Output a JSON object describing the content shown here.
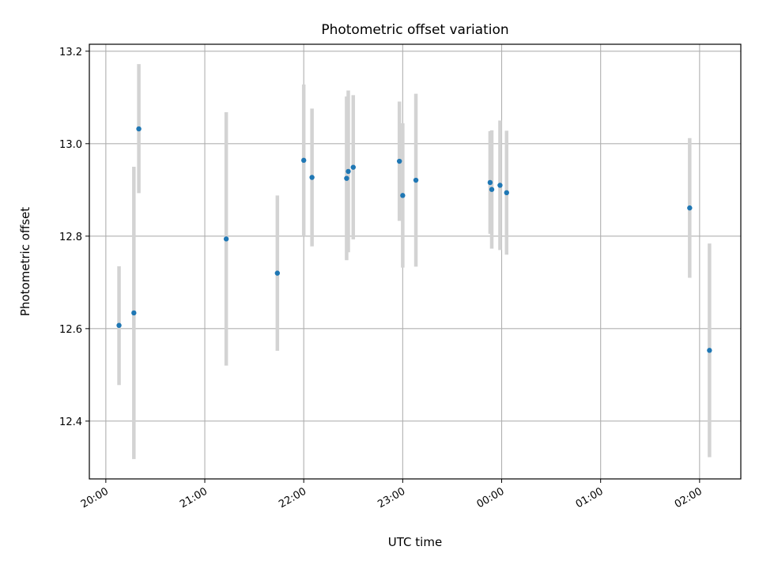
{
  "chart_data": {
    "type": "scatter",
    "title": "Photometric offset variation",
    "xlabel": "UTC time",
    "ylabel": "Photometric offset",
    "grid": true,
    "x_axis": {
      "unit": "time",
      "reference_time": "20:00",
      "range": [
        "19:50",
        "02:25"
      ],
      "ticks": [
        "20:00",
        "21:00",
        "22:00",
        "23:00",
        "00:00",
        "01:00",
        "02:00"
      ]
    },
    "y_axis": {
      "range": [
        12.275,
        13.215
      ],
      "ticks": [
        "12.4",
        "12.6",
        "12.8",
        "13.0",
        "13.2"
      ]
    },
    "colors": {
      "point": "#1f77b4",
      "errorbar": "#d3d3d3",
      "grid": "#b0b0b0",
      "axes": "#000000"
    },
    "series": [
      {
        "points": [
          {
            "x": "20:08",
            "y": 12.607,
            "err_low": 12.478,
            "err_high": 12.735
          },
          {
            "x": "20:17",
            "y": 12.634,
            "err_low": 12.318,
            "err_high": 12.95
          },
          {
            "x": "20:20",
            "y": 13.032,
            "err_low": 12.893,
            "err_high": 13.172
          },
          {
            "x": "21:13",
            "y": 12.794,
            "err_low": 12.52,
            "err_high": 13.068
          },
          {
            "x": "21:44",
            "y": 12.72,
            "err_low": 12.552,
            "err_high": 12.888
          },
          {
            "x": "22:00",
            "y": 12.964,
            "err_low": 12.8,
            "err_high": 13.128
          },
          {
            "x": "22:05",
            "y": 12.927,
            "err_low": 12.778,
            "err_high": 13.076
          },
          {
            "x": "22:26",
            "y": 12.925,
            "err_low": 12.748,
            "err_high": 13.102
          },
          {
            "x": "22:27",
            "y": 12.94,
            "err_low": 12.765,
            "err_high": 13.115
          },
          {
            "x": "22:30",
            "y": 12.949,
            "err_low": 12.793,
            "err_high": 13.105
          },
          {
            "x": "22:58",
            "y": 12.962,
            "err_low": 12.833,
            "err_high": 13.091
          },
          {
            "x": "23:00",
            "y": 12.888,
            "err_low": 12.732,
            "err_high": 13.044
          },
          {
            "x": "23:08",
            "y": 12.921,
            "err_low": 12.734,
            "err_high": 13.108
          },
          {
            "x": "23:53",
            "y": 12.916,
            "err_low": 12.805,
            "err_high": 13.027
          },
          {
            "x": "23:54",
            "y": 12.901,
            "err_low": 12.773,
            "err_high": 13.029
          },
          {
            "x": "23:59",
            "y": 12.91,
            "err_low": 12.77,
            "err_high": 13.05
          },
          {
            "x": "00:03",
            "y": 12.894,
            "err_low": 12.76,
            "err_high": 13.028
          },
          {
            "x": "01:54",
            "y": 12.861,
            "err_low": 12.71,
            "err_high": 13.012
          },
          {
            "x": "02:06",
            "y": 12.553,
            "err_low": 12.322,
            "err_high": 12.784
          }
        ]
      }
    ]
  }
}
